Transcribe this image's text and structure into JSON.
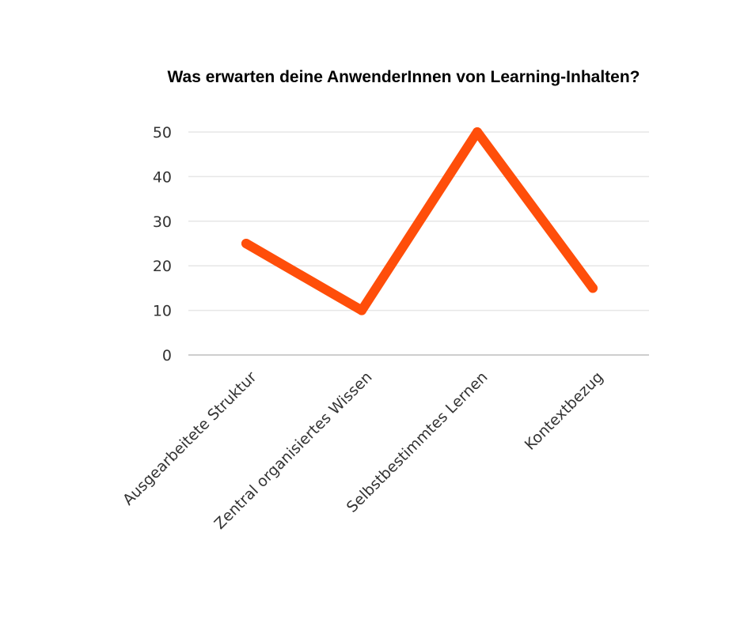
{
  "chart_data": {
    "type": "line",
    "title": "Was erwarten deine AnwenderInnen von Learning-Inhalten?",
    "categories": [
      "Ausgearbeitete Struktur",
      "Zentral organisiertes Wissen",
      "Selbstbestimmtes Lernen",
      "Kontextbezug"
    ],
    "series": [
      {
        "values": [
          25,
          10,
          50,
          15
        ],
        "color": "#ff4e0a"
      }
    ],
    "yticks": [
      0,
      10,
      20,
      30,
      40,
      50
    ],
    "ylim": [
      0,
      50
    ],
    "xlabel": "",
    "ylabel": "",
    "grid": true,
    "legend": "none"
  }
}
